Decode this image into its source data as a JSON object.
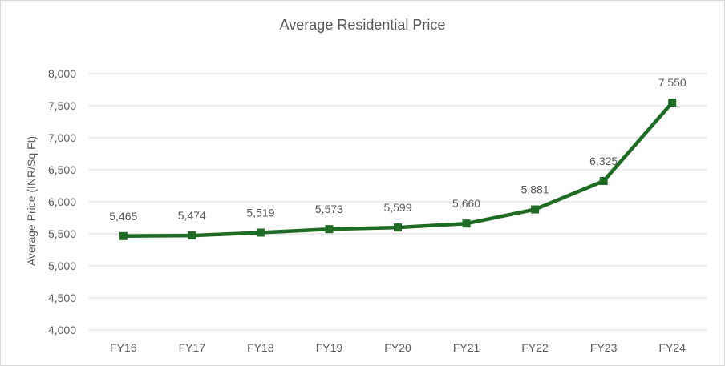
{
  "chart_data": {
    "type": "line",
    "title": "Average Residential Price",
    "xlabel": "",
    "ylabel": "Average Price (INR/Sq Ft)",
    "categories": [
      "FY16",
      "FY17",
      "FY18",
      "FY19",
      "FY20",
      "FY21",
      "FY22",
      "FY23",
      "FY24"
    ],
    "series": [
      {
        "name": "Average Residential Price",
        "values": [
          5465,
          5474,
          5519,
          5573,
          5599,
          5660,
          5881,
          6325,
          7550
        ],
        "labels": [
          "5,465",
          "5,474",
          "5,519",
          "5,573",
          "5,599",
          "5,660",
          "5,881",
          "6,325",
          "7,550"
        ]
      }
    ],
    "ylim": [
      4000,
      8000
    ],
    "yticks": [
      4000,
      4500,
      5000,
      5500,
      6000,
      6500,
      7000,
      7500,
      8000
    ],
    "ytick_labels": [
      "4,000",
      "4,500",
      "5,000",
      "5,500",
      "6,000",
      "6,500",
      "7,000",
      "7,500",
      "8,000"
    ],
    "grid": true,
    "legend": "none",
    "colors": {
      "line": "#1e6b24",
      "grid": "#d9d9d9",
      "text": "#595959"
    }
  }
}
